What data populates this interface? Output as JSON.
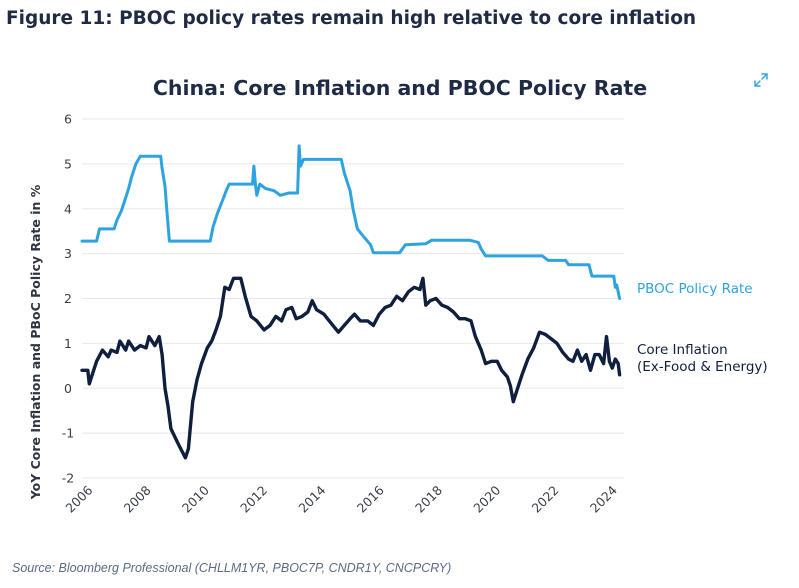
{
  "figure": {
    "title": "Figure 11: PBOC policy rates remain high relative to core inflation",
    "source": "Source: Bloomberg Professional (CHLLM1YR, PBOC7P, CNDR1Y, CNCPCRY)"
  },
  "icons": {
    "expand": "expand-arrows-icon"
  },
  "colors": {
    "title": "#1f2a44",
    "policy_rate": "#2ea3e0",
    "core_inflation": "#0f1f3d",
    "grid": "#e6e8ec",
    "axis_text": "#3a3f4a",
    "source": "#5a6b86"
  },
  "chart_data": {
    "type": "line",
    "title": "China: Core Inflation and PBOC Policy Rate",
    "ylabel": "YoY Core Inflation and PBoC Policy Rate in %",
    "xlabel": "",
    "xlim": [
      2006,
      2024.6
    ],
    "ylim": [
      -2,
      6
    ],
    "x_ticks": [
      2006,
      2008,
      2010,
      2012,
      2014,
      2016,
      2018,
      2020,
      2022,
      2024
    ],
    "y_ticks": [
      -2,
      -1,
      0,
      1,
      2,
      3,
      4,
      5,
      6
    ],
    "x_tick_labels": [
      "2006",
      "2008",
      "2010",
      "2012",
      "2014",
      "2016",
      "2018",
      "2020",
      "2022",
      "2024"
    ],
    "y_tick_labels": [
      "-2",
      "-1",
      "0",
      "1",
      "2",
      "3",
      "4",
      "5",
      "6"
    ],
    "grid": "horizontal",
    "series": [
      {
        "name": "PBOC Policy Rate",
        "label_line1": "PBOC Policy Rate",
        "label_line2": "",
        "color": "#2ea3e0",
        "points": [
          [
            2006.0,
            3.28
          ],
          [
            2006.5,
            3.28
          ],
          [
            2006.6,
            3.55
          ],
          [
            2007.1,
            3.55
          ],
          [
            2007.2,
            3.75
          ],
          [
            2007.35,
            3.95
          ],
          [
            2007.45,
            4.15
          ],
          [
            2007.6,
            4.45
          ],
          [
            2007.7,
            4.7
          ],
          [
            2007.85,
            5.0
          ],
          [
            2008.0,
            5.17
          ],
          [
            2008.7,
            5.17
          ],
          [
            2008.75,
            4.9
          ],
          [
            2008.85,
            4.5
          ],
          [
            2008.92,
            3.9
          ],
          [
            2009.0,
            3.28
          ],
          [
            2010.4,
            3.28
          ],
          [
            2010.5,
            3.6
          ],
          [
            2010.65,
            3.9
          ],
          [
            2010.8,
            4.15
          ],
          [
            2010.95,
            4.4
          ],
          [
            2011.05,
            4.55
          ],
          [
            2011.85,
            4.55
          ],
          [
            2011.9,
            4.95
          ],
          [
            2011.95,
            4.55
          ],
          [
            2012.0,
            4.3
          ],
          [
            2012.1,
            4.55
          ],
          [
            2012.3,
            4.45
          ],
          [
            2012.6,
            4.4
          ],
          [
            2012.8,
            4.3
          ],
          [
            2013.1,
            4.35
          ],
          [
            2013.4,
            4.35
          ],
          [
            2013.45,
            5.4
          ],
          [
            2013.5,
            4.95
          ],
          [
            2013.6,
            5.1
          ],
          [
            2014.9,
            5.1
          ],
          [
            2015.0,
            4.8
          ],
          [
            2015.2,
            4.4
          ],
          [
            2015.3,
            4.0
          ],
          [
            2015.45,
            3.55
          ],
          [
            2015.7,
            3.35
          ],
          [
            2015.9,
            3.2
          ],
          [
            2016.0,
            3.02
          ],
          [
            2016.9,
            3.02
          ],
          [
            2017.1,
            3.2
          ],
          [
            2017.8,
            3.22
          ],
          [
            2018.0,
            3.3
          ],
          [
            2019.3,
            3.3
          ],
          [
            2019.6,
            3.25
          ],
          [
            2019.7,
            3.1
          ],
          [
            2019.85,
            2.95
          ],
          [
            2021.8,
            2.95
          ],
          [
            2022.0,
            2.85
          ],
          [
            2022.6,
            2.85
          ],
          [
            2022.7,
            2.75
          ],
          [
            2023.4,
            2.75
          ],
          [
            2023.5,
            2.5
          ],
          [
            2024.25,
            2.5
          ],
          [
            2024.3,
            2.25
          ],
          [
            2024.35,
            2.3
          ],
          [
            2024.45,
            2.0
          ]
        ]
      },
      {
        "name": "Core Inflation (Ex-Food & Energy)",
        "label_line1": "Core Inflation",
        "label_line2": "(Ex-Food & Energy)",
        "color": "#0f1f3d",
        "points": [
          [
            2006.0,
            0.4
          ],
          [
            2006.2,
            0.4
          ],
          [
            2006.25,
            0.1
          ],
          [
            2006.35,
            0.3
          ],
          [
            2006.5,
            0.6
          ],
          [
            2006.7,
            0.85
          ],
          [
            2006.9,
            0.7
          ],
          [
            2007.0,
            0.85
          ],
          [
            2007.2,
            0.8
          ],
          [
            2007.3,
            1.05
          ],
          [
            2007.5,
            0.85
          ],
          [
            2007.6,
            1.05
          ],
          [
            2007.8,
            0.85
          ],
          [
            2008.0,
            0.95
          ],
          [
            2008.2,
            0.9
          ],
          [
            2008.3,
            1.15
          ],
          [
            2008.5,
            0.95
          ],
          [
            2008.65,
            1.15
          ],
          [
            2008.75,
            0.75
          ],
          [
            2008.85,
            0.0
          ],
          [
            2008.95,
            -0.4
          ],
          [
            2009.05,
            -0.9
          ],
          [
            2009.2,
            -1.1
          ],
          [
            2009.35,
            -1.3
          ],
          [
            2009.55,
            -1.55
          ],
          [
            2009.65,
            -1.35
          ],
          [
            2009.7,
            -1.0
          ],
          [
            2009.8,
            -0.3
          ],
          [
            2009.95,
            0.2
          ],
          [
            2010.1,
            0.55
          ],
          [
            2010.3,
            0.9
          ],
          [
            2010.45,
            1.05
          ],
          [
            2010.6,
            1.3
          ],
          [
            2010.75,
            1.6
          ],
          [
            2010.9,
            2.25
          ],
          [
            2011.05,
            2.2
          ],
          [
            2011.2,
            2.45
          ],
          [
            2011.45,
            2.45
          ],
          [
            2011.6,
            2.05
          ],
          [
            2011.8,
            1.6
          ],
          [
            2012.0,
            1.5
          ],
          [
            2012.25,
            1.3
          ],
          [
            2012.45,
            1.4
          ],
          [
            2012.65,
            1.6
          ],
          [
            2012.85,
            1.5
          ],
          [
            2013.0,
            1.75
          ],
          [
            2013.2,
            1.8
          ],
          [
            2013.35,
            1.55
          ],
          [
            2013.55,
            1.6
          ],
          [
            2013.75,
            1.7
          ],
          [
            2013.9,
            1.95
          ],
          [
            2014.05,
            1.75
          ],
          [
            2014.3,
            1.65
          ],
          [
            2014.55,
            1.45
          ],
          [
            2014.8,
            1.25
          ],
          [
            2015.0,
            1.4
          ],
          [
            2015.2,
            1.55
          ],
          [
            2015.35,
            1.65
          ],
          [
            2015.55,
            1.5
          ],
          [
            2015.8,
            1.5
          ],
          [
            2016.0,
            1.4
          ],
          [
            2016.2,
            1.65
          ],
          [
            2016.4,
            1.8
          ],
          [
            2016.6,
            1.85
          ],
          [
            2016.8,
            2.05
          ],
          [
            2017.0,
            1.95
          ],
          [
            2017.2,
            2.15
          ],
          [
            2017.4,
            2.25
          ],
          [
            2017.6,
            2.2
          ],
          [
            2017.7,
            2.45
          ],
          [
            2017.8,
            1.85
          ],
          [
            2017.95,
            1.95
          ],
          [
            2018.15,
            2.0
          ],
          [
            2018.35,
            1.85
          ],
          [
            2018.55,
            1.8
          ],
          [
            2018.75,
            1.7
          ],
          [
            2018.95,
            1.55
          ],
          [
            2019.15,
            1.55
          ],
          [
            2019.35,
            1.5
          ],
          [
            2019.5,
            1.15
          ],
          [
            2019.7,
            0.85
          ],
          [
            2019.85,
            0.55
          ],
          [
            2020.05,
            0.6
          ],
          [
            2020.25,
            0.6
          ],
          [
            2020.4,
            0.4
          ],
          [
            2020.6,
            0.25
          ],
          [
            2020.7,
            0.05
          ],
          [
            2020.8,
            -0.3
          ],
          [
            2020.95,
            0.0
          ],
          [
            2021.1,
            0.3
          ],
          [
            2021.3,
            0.65
          ],
          [
            2021.5,
            0.9
          ],
          [
            2021.7,
            1.25
          ],
          [
            2021.9,
            1.2
          ],
          [
            2022.1,
            1.1
          ],
          [
            2022.3,
            1.0
          ],
          [
            2022.5,
            0.8
          ],
          [
            2022.7,
            0.65
          ],
          [
            2022.85,
            0.6
          ],
          [
            2023.0,
            0.85
          ],
          [
            2023.15,
            0.6
          ],
          [
            2023.3,
            0.75
          ],
          [
            2023.45,
            0.4
          ],
          [
            2023.6,
            0.75
          ],
          [
            2023.75,
            0.75
          ],
          [
            2023.9,
            0.55
          ],
          [
            2024.0,
            1.15
          ],
          [
            2024.1,
            0.6
          ],
          [
            2024.2,
            0.45
          ],
          [
            2024.3,
            0.65
          ],
          [
            2024.4,
            0.55
          ],
          [
            2024.45,
            0.3
          ]
        ]
      }
    ]
  }
}
